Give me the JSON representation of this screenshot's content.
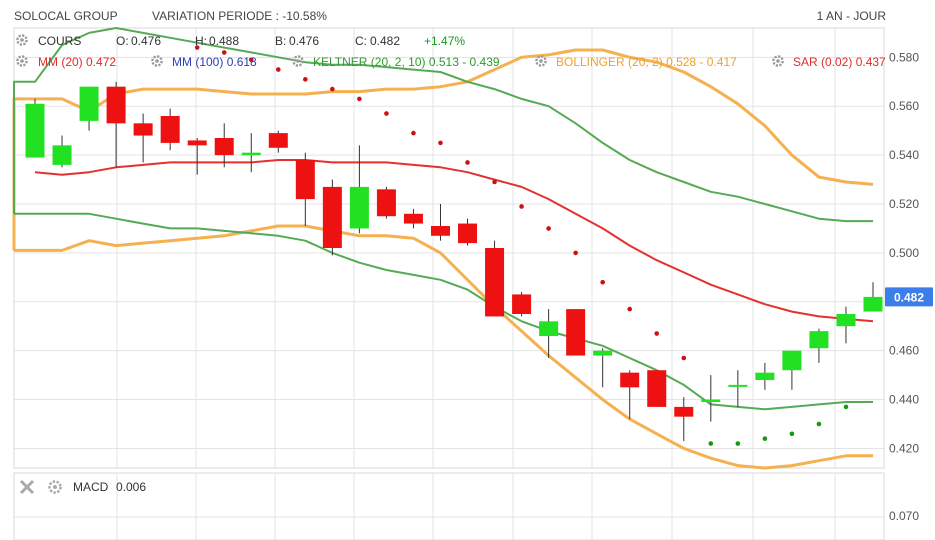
{
  "header": {
    "instrument": "SOLOCAL GROUP",
    "variation": "VARIATION PERIODE : -10.58%",
    "period": "1 AN - JOUR"
  },
  "legend": {
    "cours": {
      "label": "COURS",
      "color": "#333333"
    },
    "open": {
      "label": "O:",
      "value": "0.476"
    },
    "high": {
      "label": "H:",
      "value": "0.488"
    },
    "low": {
      "label": "B:",
      "value": "0.476"
    },
    "close": {
      "label": "C:",
      "value": "0.482"
    },
    "change": {
      "value": "+1.47%",
      "color": "#1a9a1a"
    },
    "mm20": {
      "label": "MM (20)",
      "value": "0.472",
      "color": "#e02b2b"
    },
    "mm100": {
      "label": "MM (100)",
      "value": "0.618",
      "color": "#2c3eb5"
    },
    "keltner": {
      "label": "KELTNER (20, 2, 10)",
      "value": "0.513 - 0.439",
      "color": "#2e9a2e"
    },
    "bollinger": {
      "label": "BOLLINGER (20, 2)",
      "value": "0.528 - 0.417",
      "color": "#f0a030"
    },
    "sar": {
      "label": "SAR (0.02)",
      "value": "0.437",
      "color": "#e02b2b"
    }
  },
  "macd_panel": {
    "label": "MACD",
    "value": "0.006",
    "tick": "0.070"
  },
  "last_price_tag": "0.482",
  "colors": {
    "up": "#22e022",
    "down": "#ee1111",
    "grid": "#e3e3e3",
    "keltner": "#55aa55",
    "bollinger": "#f5b050",
    "mm20": "#e53030",
    "sar_bear": "#cc1111",
    "sar_bull": "#119911",
    "price_tag": "#3b7de9"
  },
  "chart_data": {
    "type": "candlestick",
    "ylim": [
      0.412,
      0.592
    ],
    "yticks": [
      "0.580",
      "0.560",
      "0.540",
      "0.520",
      "0.500",
      "0.480",
      "0.460",
      "0.440",
      "0.420"
    ],
    "grid": true,
    "candles": [
      {
        "o": 0.539,
        "h": 0.563,
        "l": 0.539,
        "c": 0.561
      },
      {
        "o": 0.536,
        "h": 0.548,
        "l": 0.535,
        "c": 0.544
      },
      {
        "o": 0.554,
        "h": 0.568,
        "l": 0.55,
        "c": 0.568
      },
      {
        "o": 0.568,
        "h": 0.57,
        "l": 0.535,
        "c": 0.553
      },
      {
        "o": 0.553,
        "h": 0.557,
        "l": 0.537,
        "c": 0.548
      },
      {
        "o": 0.556,
        "h": 0.559,
        "l": 0.542,
        "c": 0.545
      },
      {
        "o": 0.546,
        "h": 0.547,
        "l": 0.532,
        "c": 0.544
      },
      {
        "o": 0.547,
        "h": 0.553,
        "l": 0.535,
        "c": 0.54
      },
      {
        "o": 0.54,
        "h": 0.549,
        "l": 0.533,
        "c": 0.541
      },
      {
        "o": 0.549,
        "h": 0.55,
        "l": 0.541,
        "c": 0.543
      },
      {
        "o": 0.538,
        "h": 0.541,
        "l": 0.511,
        "c": 0.522
      },
      {
        "o": 0.527,
        "h": 0.53,
        "l": 0.499,
        "c": 0.502
      },
      {
        "o": 0.51,
        "h": 0.544,
        "l": 0.508,
        "c": 0.527
      },
      {
        "o": 0.526,
        "h": 0.527,
        "l": 0.514,
        "c": 0.515
      },
      {
        "o": 0.516,
        "h": 0.518,
        "l": 0.51,
        "c": 0.512
      },
      {
        "o": 0.511,
        "h": 0.52,
        "l": 0.505,
        "c": 0.507
      },
      {
        "o": 0.512,
        "h": 0.514,
        "l": 0.503,
        "c": 0.504
      },
      {
        "o": 0.502,
        "h": 0.505,
        "l": 0.474,
        "c": 0.474
      },
      {
        "o": 0.483,
        "h": 0.484,
        "l": 0.474,
        "c": 0.475
      },
      {
        "o": 0.466,
        "h": 0.477,
        "l": 0.457,
        "c": 0.472
      },
      {
        "o": 0.477,
        "h": 0.477,
        "l": 0.458,
        "c": 0.458
      },
      {
        "o": 0.458,
        "h": 0.461,
        "l": 0.445,
        "c": 0.46
      },
      {
        "o": 0.451,
        "h": 0.452,
        "l": 0.432,
        "c": 0.445
      },
      {
        "o": 0.452,
        "h": 0.452,
        "l": 0.437,
        "c": 0.437
      },
      {
        "o": 0.437,
        "h": 0.441,
        "l": 0.423,
        "c": 0.433
      },
      {
        "o": 0.439,
        "h": 0.45,
        "l": 0.431,
        "c": 0.44
      },
      {
        "o": 0.446,
        "h": 0.452,
        "l": 0.437,
        "c": 0.446
      },
      {
        "o": 0.448,
        "h": 0.455,
        "l": 0.444,
        "c": 0.451
      },
      {
        "o": 0.452,
        "h": 0.46,
        "l": 0.444,
        "c": 0.46
      },
      {
        "o": 0.461,
        "h": 0.469,
        "l": 0.455,
        "c": 0.468
      },
      {
        "o": 0.47,
        "h": 0.478,
        "l": 0.463,
        "c": 0.475
      },
      {
        "o": 0.476,
        "h": 0.488,
        "l": 0.476,
        "c": 0.482
      }
    ],
    "mm20": [
      0.533,
      0.532,
      0.533,
      0.535,
      0.536,
      0.537,
      0.537,
      0.537,
      0.537,
      0.538,
      0.538,
      0.537,
      0.537,
      0.537,
      0.536,
      0.535,
      0.533,
      0.53,
      0.527,
      0.522,
      0.516,
      0.51,
      0.503,
      0.497,
      0.492,
      0.487,
      0.483,
      0.479,
      0.476,
      0.474,
      0.473,
      0.472
    ],
    "keltner_upper": [
      0.57,
      0.585,
      0.59,
      0.592,
      0.59,
      0.588,
      0.586,
      0.584,
      0.582,
      0.58,
      0.578,
      0.577,
      0.577,
      0.576,
      0.575,
      0.574,
      0.57,
      0.567,
      0.563,
      0.56,
      0.553,
      0.545,
      0.538,
      0.533,
      0.529,
      0.525,
      0.523,
      0.52,
      0.517,
      0.514,
      0.513,
      0.513
    ],
    "keltner_lower": [
      0.516,
      0.516,
      0.516,
      0.514,
      0.512,
      0.51,
      0.51,
      0.509,
      0.508,
      0.507,
      0.505,
      0.5,
      0.496,
      0.493,
      0.491,
      0.489,
      0.485,
      0.478,
      0.472,
      0.468,
      0.465,
      0.462,
      0.457,
      0.452,
      0.446,
      0.438,
      0.437,
      0.436,
      0.437,
      0.438,
      0.439,
      0.439
    ],
    "bollinger_upper": [
      0.563,
      0.563,
      0.558,
      0.565,
      0.567,
      0.567,
      0.567,
      0.566,
      0.565,
      0.565,
      0.565,
      0.566,
      0.566,
      0.567,
      0.567,
      0.568,
      0.57,
      0.575,
      0.58,
      0.581,
      0.583,
      0.583,
      0.58,
      0.578,
      0.574,
      0.568,
      0.561,
      0.552,
      0.54,
      0.531,
      0.529,
      0.528
    ],
    "bollinger_lower": [
      0.501,
      0.501,
      0.505,
      0.503,
      0.504,
      0.505,
      0.506,
      0.507,
      0.509,
      0.511,
      0.511,
      0.509,
      0.507,
      0.507,
      0.506,
      0.5,
      0.489,
      0.478,
      0.468,
      0.458,
      0.449,
      0.44,
      0.432,
      0.426,
      0.42,
      0.416,
      0.413,
      0.412,
      0.413,
      0.415,
      0.417,
      0.417
    ],
    "sar": [
      {
        "i": 6,
        "v": 0.584,
        "trend": "down"
      },
      {
        "i": 7,
        "v": 0.582,
        "trend": "down"
      },
      {
        "i": 8,
        "v": 0.579,
        "trend": "down"
      },
      {
        "i": 9,
        "v": 0.575,
        "trend": "down"
      },
      {
        "i": 10,
        "v": 0.571,
        "trend": "down"
      },
      {
        "i": 11,
        "v": 0.567,
        "trend": "down"
      },
      {
        "i": 12,
        "v": 0.563,
        "trend": "down"
      },
      {
        "i": 13,
        "v": 0.557,
        "trend": "down"
      },
      {
        "i": 14,
        "v": 0.549,
        "trend": "down"
      },
      {
        "i": 15,
        "v": 0.545,
        "trend": "down"
      },
      {
        "i": 16,
        "v": 0.537,
        "trend": "down"
      },
      {
        "i": 17,
        "v": 0.529,
        "trend": "down"
      },
      {
        "i": 18,
        "v": 0.519,
        "trend": "down"
      },
      {
        "i": 19,
        "v": 0.51,
        "trend": "down"
      },
      {
        "i": 20,
        "v": 0.5,
        "trend": "down"
      },
      {
        "i": 21,
        "v": 0.488,
        "trend": "down"
      },
      {
        "i": 22,
        "v": 0.477,
        "trend": "down"
      },
      {
        "i": 23,
        "v": 0.467,
        "trend": "down"
      },
      {
        "i": 24,
        "v": 0.457,
        "trend": "down"
      },
      {
        "i": 25,
        "v": 0.422,
        "trend": "up"
      },
      {
        "i": 26,
        "v": 0.422,
        "trend": "up"
      },
      {
        "i": 27,
        "v": 0.424,
        "trend": "up"
      },
      {
        "i": 28,
        "v": 0.426,
        "trend": "up"
      },
      {
        "i": 29,
        "v": 0.43,
        "trend": "up"
      },
      {
        "i": 30,
        "v": 0.437,
        "trend": "up"
      }
    ]
  }
}
